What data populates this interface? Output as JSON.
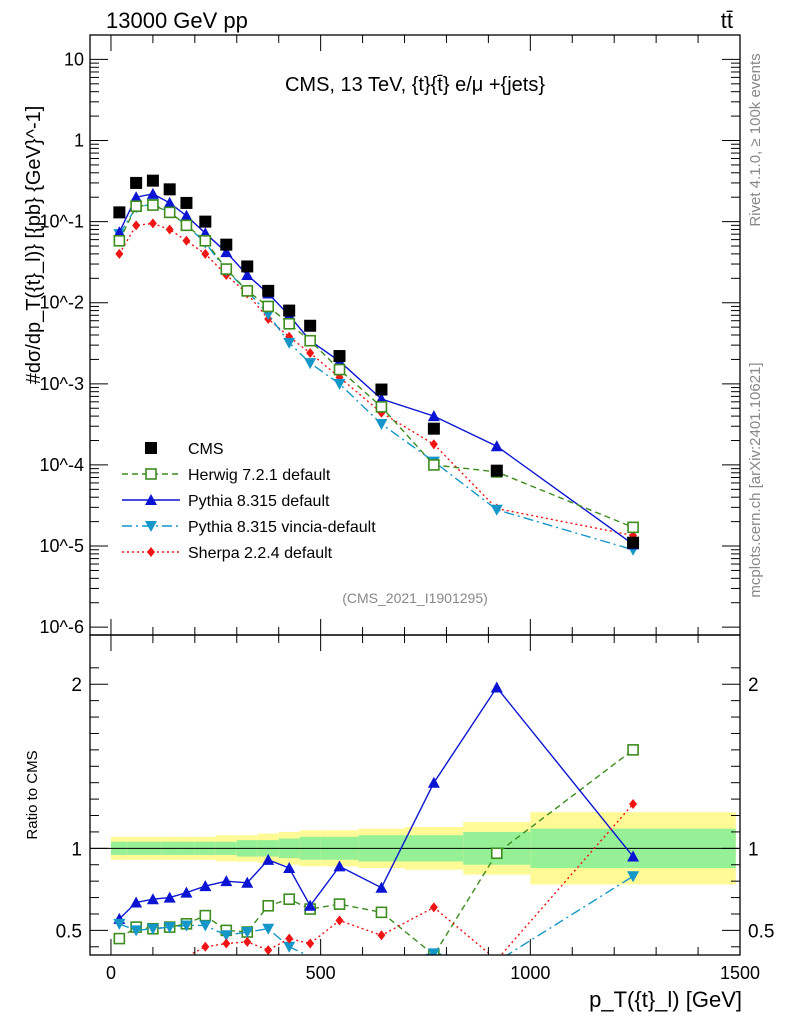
{
  "header": {
    "left": "13000 GeV pp",
    "right": "tt̄"
  },
  "side_labels": {
    "rivet": "Rivet 4.1.0, ≥ 100k events",
    "mcplots": "mcplots.cern.ch [arXiv:2401.10621]"
  },
  "chart_data": {
    "type": "scatter",
    "title": "CMS, 13 TeV, {t}{t̄} e/μ +{jets}",
    "watermark": "(CMS_2021_I1901295)",
    "xlabel": "p_T({t}_l) [GeV]",
    "ylabel_top": "#dσ/dp_T({t}_l)} [{pb} {GeV}^-1]",
    "ylabel_bottom": "Ratio to CMS",
    "xlim": [
      -50,
      1500
    ],
    "ylim_top": [
      8e-07,
      20
    ],
    "ylim_ratio": [
      0.35,
      2.3
    ],
    "x_ticks": [
      "0",
      "500",
      "1000",
      "1500"
    ],
    "top_ticks": [
      "10^-6",
      "10^-5",
      "10^-4",
      "10^-3",
      "10^-2",
      "10^-1",
      "1",
      "10"
    ],
    "ratio_ticks": [
      "0.5",
      "1",
      "2"
    ],
    "x": [
      20,
      60,
      100,
      140,
      180,
      225,
      275,
      325,
      375,
      425,
      475,
      545,
      645,
      770,
      920,
      1245
    ],
    "bin_edges": [
      0,
      40,
      80,
      120,
      160,
      200,
      250,
      300,
      350,
      400,
      450,
      500,
      590,
      700,
      840,
      1000,
      1490
    ],
    "band_inner": [
      0.04,
      0.04,
      0.04,
      0.04,
      0.04,
      0.04,
      0.04,
      0.05,
      0.05,
      0.06,
      0.07,
      0.07,
      0.08,
      0.08,
      0.1,
      0.12,
      0.18
    ],
    "band_outer": [
      0.07,
      0.07,
      0.07,
      0.07,
      0.07,
      0.07,
      0.08,
      0.08,
      0.09,
      0.1,
      0.11,
      0.11,
      0.12,
      0.13,
      0.16,
      0.22,
      0.3
    ],
    "legend": [
      {
        "name": "CMS",
        "color": "#000000",
        "style": "solid",
        "marker": "square"
      },
      {
        "name": "Herwig 7.2.1 default",
        "color": "#3c8c1e",
        "style": "dash",
        "marker": "open-square"
      },
      {
        "name": "Pythia 8.315 default",
        "color": "#0a14d2",
        "style": "solid",
        "marker": "triangle-up"
      },
      {
        "name": "Pythia 8.315 vincia-default",
        "color": "#1496c8",
        "style": "dashdot",
        "marker": "triangle-down"
      },
      {
        "name": "Sherpa 2.2.4 default",
        "color": "#f01414",
        "style": "dot",
        "marker": "diamond"
      }
    ],
    "series": [
      {
        "name": "CMS",
        "values": [
          0.13,
          0.3,
          0.32,
          0.25,
          0.17,
          0.1,
          0.052,
          0.028,
          0.014,
          0.008,
          0.0052,
          0.0022,
          0.00085,
          0.00028,
          8.5e-05,
          1.1e-05
        ]
      },
      {
        "name": "Herwig 7.2.1 default",
        "values": [
          0.058,
          0.155,
          0.16,
          0.13,
          0.09,
          0.058,
          0.026,
          0.014,
          0.009,
          0.0055,
          0.0034,
          0.0015,
          0.00052,
          0.0001,
          8.2e-05,
          1.7e-05
        ]
      },
      {
        "name": "Pythia 8.315 default",
        "values": [
          0.074,
          0.2,
          0.22,
          0.17,
          0.118,
          0.072,
          0.042,
          0.022,
          0.013,
          0.007,
          0.0034,
          0.0019,
          0.00065,
          0.0004,
          0.00017,
          1.05e-05
        ]
      },
      {
        "name": "Pythia 8.315 vincia-default",
        "values": [
          0.07,
          0.15,
          0.165,
          0.13,
          0.09,
          0.055,
          0.025,
          0.014,
          0.0072,
          0.0032,
          0.0018,
          0.001,
          0.00032,
          0.00011,
          2.8e-05,
          9e-06
        ]
      },
      {
        "name": "Sherpa 2.2.4 default",
        "values": [
          0.04,
          0.09,
          0.095,
          0.08,
          0.058,
          0.04,
          0.022,
          0.013,
          0.0063,
          0.0038,
          0.0024,
          0.0012,
          0.00044,
          0.00018,
          2.9e-05,
          1.35e-05
        ]
      }
    ],
    "ratios": [
      {
        "name": "Herwig 7.2.1 default",
        "values": [
          0.45,
          0.52,
          0.51,
          0.52,
          0.54,
          0.59,
          0.5,
          0.49,
          0.65,
          0.69,
          0.63,
          0.66,
          0.61,
          0.35,
          0.97,
          1.6
        ]
      },
      {
        "name": "Pythia 8.315 default",
        "values": [
          0.57,
          0.67,
          0.69,
          0.7,
          0.73,
          0.77,
          0.8,
          0.79,
          0.93,
          0.88,
          0.65,
          0.89,
          0.76,
          1.4,
          1.98,
          0.95
        ]
      },
      {
        "name": "Pythia 8.315 vincia-default",
        "values": [
          0.54,
          0.5,
          0.51,
          0.52,
          0.53,
          0.53,
          0.47,
          0.49,
          0.51,
          0.4,
          0.34,
          0.33,
          0.31,
          0.36,
          0.31,
          0.83
        ]
      },
      {
        "name": "Sherpa 2.2.4 default",
        "values": [
          0.31,
          0.3,
          0.3,
          0.32,
          0.34,
          0.4,
          0.42,
          0.43,
          0.38,
          0.45,
          0.42,
          0.56,
          0.47,
          0.64,
          0.32,
          1.27
        ]
      }
    ]
  }
}
